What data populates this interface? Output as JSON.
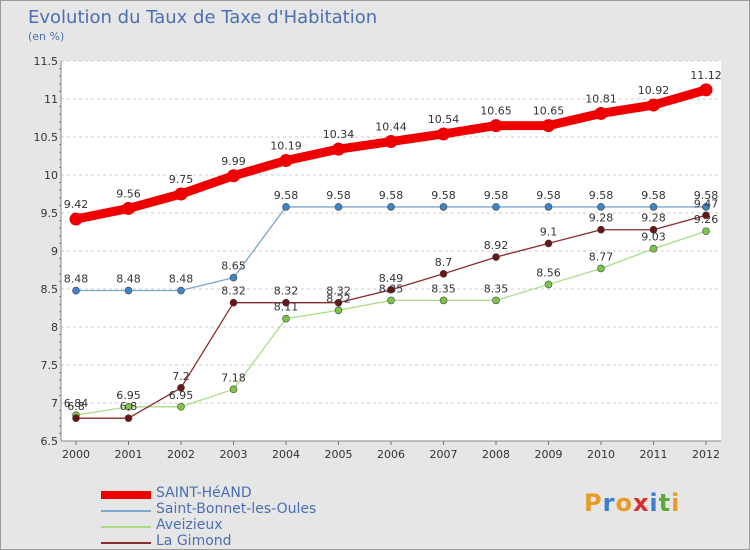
{
  "title": "Evolution du Taux de Taxe d'Habitation",
  "subtitle": "(en %)",
  "logo": {
    "text": "Proxiti",
    "letters": [
      "P",
      "r",
      "o",
      "x",
      "i",
      "t",
      "i"
    ],
    "colors": [
      "#e69b2a",
      "#3a7ed1",
      "#e69b2a",
      "#d7302a",
      "#3a7ed1",
      "#5aab3c",
      "#e69b2a"
    ]
  },
  "chart_data": {
    "type": "line",
    "title": "Evolution du Taux de Taxe d'Habitation",
    "ylabel": "(en %)",
    "xlabel": "",
    "x": [
      "2000",
      "2001",
      "2002",
      "2003",
      "2004",
      "2005",
      "2006",
      "2007",
      "2008",
      "2009",
      "2010",
      "2011",
      "2012"
    ],
    "ylim": [
      6.5,
      11.5
    ],
    "yticks": [
      "6.5",
      "7",
      "7.5",
      "8",
      "8.5",
      "9",
      "9.5",
      "10",
      "10.5",
      "11",
      "11.5"
    ],
    "grid": "horizontal dashed",
    "legend_position": "bottom-left",
    "series": [
      {
        "name": "SAINT-HéAND",
        "color": "#ee0000",
        "marker": "#ee0000",
        "values": [
          9.42,
          9.56,
          9.75,
          9.99,
          10.19,
          10.34,
          10.44,
          10.54,
          10.65,
          10.65,
          10.81,
          10.92,
          11.12
        ],
        "labels": [
          "9.42",
          "9.56",
          "9.75",
          "9.99",
          "10.19",
          "10.34",
          "10.44",
          "10.54",
          "10.65",
          "10.65",
          "10.81",
          "10.92",
          "11.12"
        ]
      },
      {
        "name": "Saint-Bonnet-les-Oules",
        "color": "#7aa6cf",
        "marker": "#3d86c6",
        "values": [
          8.48,
          8.48,
          8.48,
          8.65,
          9.58,
          9.58,
          9.58,
          9.58,
          9.58,
          9.58,
          9.58,
          9.58,
          9.58
        ],
        "labels": [
          "8.48",
          "8.48",
          "8.48",
          "8.65",
          "9.58",
          "9.58",
          "9.58",
          "9.58",
          "9.58",
          "9.58",
          "9.58",
          "9.58",
          "9.58"
        ]
      },
      {
        "name": "Aveizieux",
        "color": "#a9dc84",
        "marker": "#7cc546",
        "values": [
          6.84,
          6.95,
          6.95,
          7.18,
          8.11,
          8.22,
          8.35,
          8.35,
          8.35,
          8.56,
          8.77,
          9.03,
          9.26
        ],
        "labels": [
          "6.84",
          "6.95",
          "6.95",
          "7.18",
          "8.11",
          "8.22",
          "8.35",
          "8.35",
          "8.35",
          "8.56",
          "8.77",
          "9.03",
          "9.26"
        ]
      },
      {
        "name": "La Gimond",
        "color": "#8b2c2c",
        "marker": "#6a1414",
        "values": [
          6.8,
          6.8,
          7.2,
          8.32,
          8.32,
          8.32,
          8.49,
          8.7,
          8.92,
          9.1,
          9.28,
          9.28,
          9.47
        ],
        "labels": [
          "6.8",
          "6.8",
          "7.2",
          "8.32",
          "8.32",
          "8.32",
          "8.49",
          "8.7",
          "8.92",
          "9.1",
          "9.28",
          "9.28",
          "9.47"
        ]
      }
    ]
  }
}
